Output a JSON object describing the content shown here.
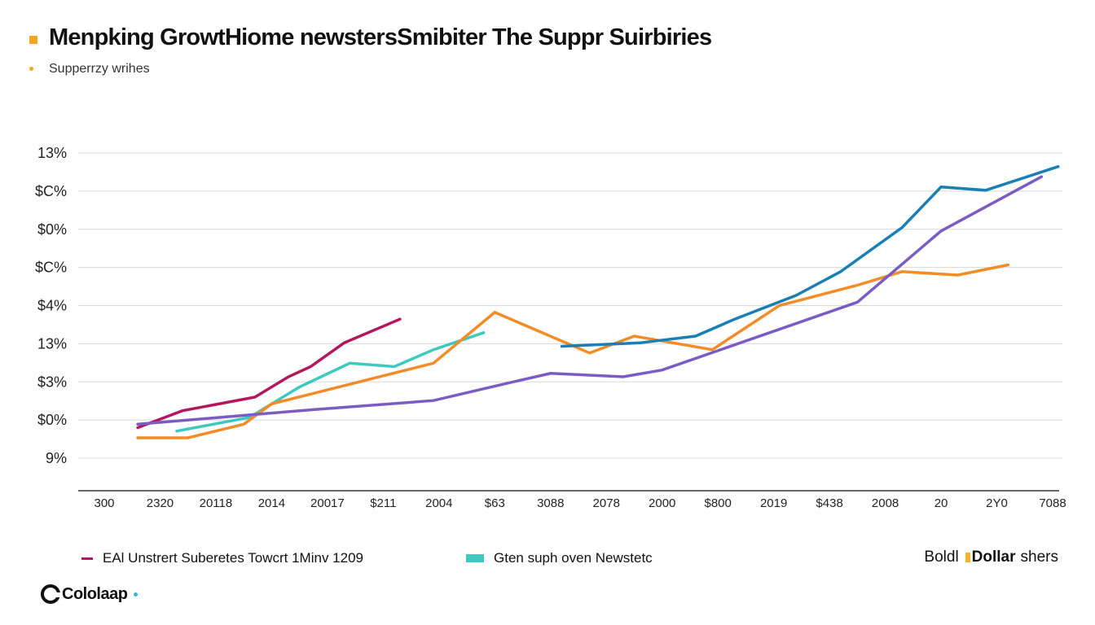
{
  "title": "Menpking GrowtHiome newstersSmibiter The Suppr Suirbiries",
  "subtitle": "Supperrzy wrihes",
  "colors": {
    "accent": "#f5a524",
    "magenta": "#b5175e",
    "blue": "#1a7fb5",
    "orange": "#f28c28",
    "teal": "#3ec9c0",
    "purple": "#7a5cc4",
    "yellow": "#f5b324"
  },
  "legend": {
    "item1_label": "EAl Unstrert Suberetes Towcrt 1Minv 1209",
    "item2_label": "Gten suph oven Newstetc",
    "end_plain": "Boldl",
    "end_bold": "Dollar",
    "end_tail": "shers"
  },
  "logo": {
    "text": "Cololaap",
    "icon": "cololaap-logo-icon"
  },
  "chart_data": {
    "type": "line",
    "title": "Menpking GrowtHiome newstersSmibiter The Suppr Suirbiries",
    "subtitle": "Supperrzy wrihes",
    "y_tick_labels": [
      "13%",
      "$C%",
      "$0%",
      "$C%",
      "$4%",
      "13%",
      "$3%",
      "$0%",
      "9%"
    ],
    "x_tick_labels": [
      "300",
      "2320",
      "20118",
      "2014",
      "20017",
      "$211",
      "2004",
      "$63",
      "3088",
      "2078",
      "2000",
      "$800",
      "2019",
      "$438",
      "2008",
      "20",
      "2Y0",
      "7088"
    ],
    "ylim": [
      0,
      9
    ],
    "grid": true,
    "legend_position": "bottom",
    "series": [
      {
        "name": "EAl Unstrert Suberetes Towcrt 1Minv 1209",
        "color": "#b5175e",
        "values": [
          {
            "x": 0.6,
            "y": 0.9
          },
          {
            "x": 1.4,
            "y": 1.4
          },
          {
            "x": 2.7,
            "y": 1.8
          },
          {
            "x": 3.3,
            "y": 2.4
          },
          {
            "x": 3.7,
            "y": 2.7
          },
          {
            "x": 4.3,
            "y": 3.4
          },
          {
            "x": 5.3,
            "y": 4.1
          }
        ]
      },
      {
        "name": "Gten suph oven Newstetc",
        "color": "#3ec9c0",
        "values": [
          {
            "x": 1.3,
            "y": 0.8
          },
          {
            "x": 2.6,
            "y": 1.2
          },
          {
            "x": 3.5,
            "y": 2.1
          },
          {
            "x": 4.4,
            "y": 2.8
          },
          {
            "x": 5.2,
            "y": 2.7
          },
          {
            "x": 5.9,
            "y": 3.2
          },
          {
            "x": 6.8,
            "y": 3.7
          }
        ]
      },
      {
        "name": "Dollar",
        "color": "#f28c28",
        "values": [
          {
            "x": 0.6,
            "y": 0.6
          },
          {
            "x": 1.5,
            "y": 0.6
          },
          {
            "x": 2.5,
            "y": 1.0
          },
          {
            "x": 3.0,
            "y": 1.6
          },
          {
            "x": 5.9,
            "y": 2.8
          },
          {
            "x": 7.0,
            "y": 4.3
          },
          {
            "x": 8.7,
            "y": 3.1
          },
          {
            "x": 9.5,
            "y": 3.6
          },
          {
            "x": 10.9,
            "y": 3.2
          },
          {
            "x": 12.1,
            "y": 4.5
          },
          {
            "x": 13.5,
            "y": 5.1
          },
          {
            "x": 14.3,
            "y": 5.5
          },
          {
            "x": 15.3,
            "y": 5.4
          },
          {
            "x": 16.2,
            "y": 5.7
          }
        ]
      },
      {
        "name": "",
        "color": "#1a7fb5",
        "values": [
          {
            "x": 8.2,
            "y": 3.3
          },
          {
            "x": 9.6,
            "y": 3.4
          },
          {
            "x": 10.6,
            "y": 3.6
          },
          {
            "x": 11.3,
            "y": 4.1
          },
          {
            "x": 12.4,
            "y": 4.8
          },
          {
            "x": 13.2,
            "y": 5.5
          },
          {
            "x": 14.3,
            "y": 6.8
          },
          {
            "x": 15.0,
            "y": 8.0
          },
          {
            "x": 15.8,
            "y": 7.9
          },
          {
            "x": 17.1,
            "y": 8.6
          }
        ]
      },
      {
        "name": "",
        "color": "#7a5cc4",
        "values": [
          {
            "x": 0.6,
            "y": 1.0
          },
          {
            "x": 3.5,
            "y": 1.4
          },
          {
            "x": 5.9,
            "y": 1.7
          },
          {
            "x": 7.2,
            "y": 2.2
          },
          {
            "x": 8.0,
            "y": 2.5
          },
          {
            "x": 9.3,
            "y": 2.4
          },
          {
            "x": 10.0,
            "y": 2.6
          },
          {
            "x": 13.5,
            "y": 4.6
          },
          {
            "x": 15.0,
            "y": 6.7
          },
          {
            "x": 16.8,
            "y": 8.3
          }
        ]
      }
    ]
  }
}
